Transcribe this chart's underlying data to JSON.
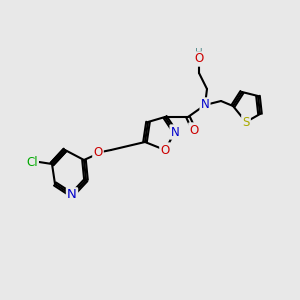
{
  "bg_color": "#e8e8e8",
  "bond_color": "#000000",
  "bond_lw": 1.5,
  "atom_colors": {
    "C": "#000000",
    "N": "#0000cc",
    "O": "#cc0000",
    "S": "#aaaa00",
    "Cl": "#00aa00",
    "H": "#5a9090"
  },
  "font_size": 8.5,
  "bold_font": false
}
